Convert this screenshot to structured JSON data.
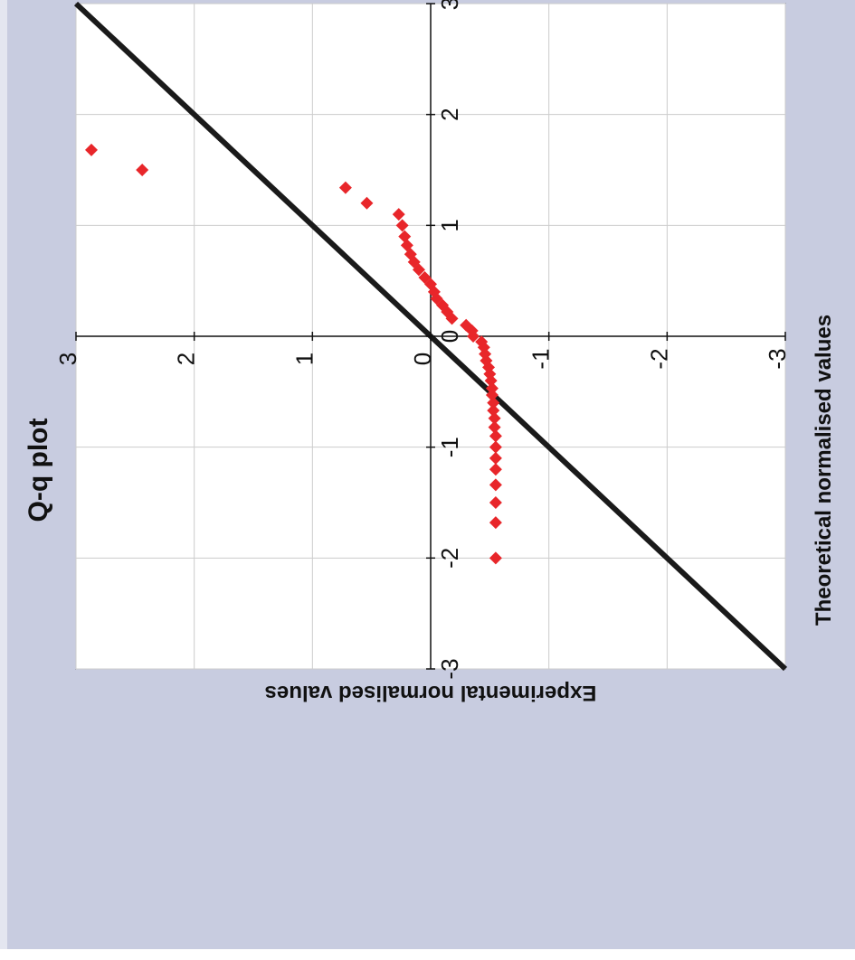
{
  "chart_data": {
    "type": "scatter",
    "title": "Q-q plot",
    "xlabel": "Theoretical normalised values",
    "ylabel": "Experimental normalised values",
    "xlim": [
      -3,
      3
    ],
    "ylim": [
      -3,
      3
    ],
    "x_ticks": [
      "-3",
      "-2",
      "-1",
      "0",
      "1",
      "2",
      "3"
    ],
    "y_ticks": [
      "-3",
      "-2",
      "-1",
      "0",
      "1",
      "2",
      "3"
    ],
    "grid": true,
    "reference_line": {
      "from": [
        -3,
        -3
      ],
      "to": [
        3,
        3
      ]
    },
    "colors": {
      "background": "#c8cce0",
      "plot_area": "#ffffff",
      "points": "#e8262a",
      "reference_line": "#1a1a1a",
      "grid": "#cccccc"
    },
    "points": [
      {
        "x": -2.0,
        "y": -0.55
      },
      {
        "x": -1.68,
        "y": -0.55
      },
      {
        "x": -1.5,
        "y": -0.55
      },
      {
        "x": -1.34,
        "y": -0.55
      },
      {
        "x": -1.2,
        "y": -0.55
      },
      {
        "x": -1.1,
        "y": -0.55
      },
      {
        "x": -1.0,
        "y": -0.55
      },
      {
        "x": -0.9,
        "y": -0.55
      },
      {
        "x": -0.82,
        "y": -0.54
      },
      {
        "x": -0.74,
        "y": -0.54
      },
      {
        "x": -0.67,
        "y": -0.53
      },
      {
        "x": -0.6,
        "y": -0.53
      },
      {
        "x": -0.53,
        "y": -0.52
      },
      {
        "x": -0.47,
        "y": -0.52
      },
      {
        "x": -0.4,
        "y": -0.51
      },
      {
        "x": -0.34,
        "y": -0.5
      },
      {
        "x": -0.28,
        "y": -0.49
      },
      {
        "x": -0.22,
        "y": -0.47
      },
      {
        "x": -0.16,
        "y": -0.46
      },
      {
        "x": -0.1,
        "y": -0.45
      },
      {
        "x": -0.05,
        "y": -0.43
      },
      {
        "x": 0.0,
        "y": -0.36
      },
      {
        "x": 0.05,
        "y": -0.35
      },
      {
        "x": 0.1,
        "y": -0.3
      },
      {
        "x": 0.16,
        "y": -0.18
      },
      {
        "x": 0.22,
        "y": -0.14
      },
      {
        "x": 0.28,
        "y": -0.1
      },
      {
        "x": 0.34,
        "y": -0.05
      },
      {
        "x": 0.4,
        "y": -0.03
      },
      {
        "x": 0.47,
        "y": 0.0
      },
      {
        "x": 0.53,
        "y": 0.05
      },
      {
        "x": 0.6,
        "y": 0.1
      },
      {
        "x": 0.67,
        "y": 0.14
      },
      {
        "x": 0.74,
        "y": 0.17
      },
      {
        "x": 0.82,
        "y": 0.2
      },
      {
        "x": 0.9,
        "y": 0.22
      },
      {
        "x": 1.0,
        "y": 0.24
      },
      {
        "x": 1.1,
        "y": 0.27
      },
      {
        "x": 1.2,
        "y": 0.54
      },
      {
        "x": 1.34,
        "y": 0.72
      },
      {
        "x": 1.5,
        "y": 2.44
      },
      {
        "x": 1.68,
        "y": 2.87
      }
    ]
  }
}
